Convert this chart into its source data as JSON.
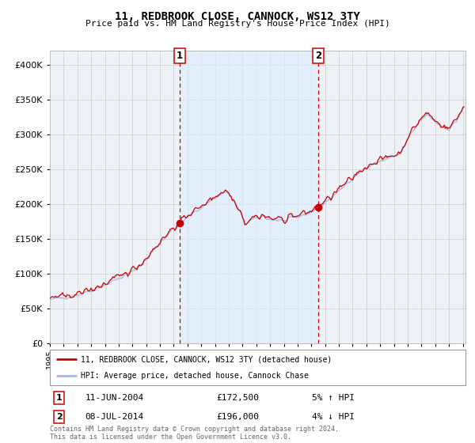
{
  "title": "11, REDBROOK CLOSE, CANNOCK, WS12 3TY",
  "subtitle": "Price paid vs. HM Land Registry's House Price Index (HPI)",
  "legend_line1": "11, REDBROOK CLOSE, CANNOCK, WS12 3TY (detached house)",
  "legend_line2": "HPI: Average price, detached house, Cannock Chase",
  "annotation1_date": "11-JUN-2004",
  "annotation1_price": "£172,500",
  "annotation1_hpi": "5% ↑ HPI",
  "annotation2_date": "08-JUL-2014",
  "annotation2_price": "£196,000",
  "annotation2_hpi": "4% ↓ HPI",
  "footnote": "Contains HM Land Registry data © Crown copyright and database right 2024.\nThis data is licensed under the Open Government Licence v3.0.",
  "hpi_color": "#aabbdd",
  "price_color": "#cc0000",
  "dot_color": "#cc0000",
  "vline_color": "#cc0000",
  "shade_color": "#ddeeff",
  "chart_bg": "#eef2f7",
  "grid_color": "#cccccc",
  "ylim": [
    0,
    420000
  ],
  "yticks": [
    0,
    50000,
    100000,
    150000,
    200000,
    250000,
    300000,
    350000,
    400000
  ],
  "transaction1_x": 2004.44,
  "transaction1_y": 172500,
  "transaction2_x": 2014.52,
  "transaction2_y": 196000,
  "shade_x1": 2004.44,
  "shade_x2": 2014.52,
  "xmin": 1995.0,
  "xmax": 2025.2
}
